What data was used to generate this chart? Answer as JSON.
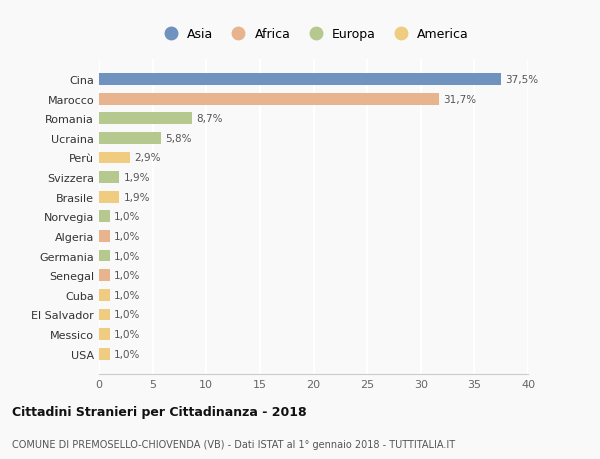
{
  "countries": [
    "Cina",
    "Marocco",
    "Romania",
    "Ucraina",
    "Perù",
    "Svizzera",
    "Brasile",
    "Norvegia",
    "Algeria",
    "Germania",
    "Senegal",
    "Cuba",
    "El Salvador",
    "Messico",
    "USA"
  ],
  "values": [
    37.5,
    31.7,
    8.7,
    5.8,
    2.9,
    1.9,
    1.9,
    1.0,
    1.0,
    1.0,
    1.0,
    1.0,
    1.0,
    1.0,
    1.0
  ],
  "labels": [
    "37,5%",
    "31,7%",
    "8,7%",
    "5,8%",
    "2,9%",
    "1,9%",
    "1,9%",
    "1,0%",
    "1,0%",
    "1,0%",
    "1,0%",
    "1,0%",
    "1,0%",
    "1,0%",
    "1,0%"
  ],
  "continents": [
    "Asia",
    "Africa",
    "Europa",
    "Europa",
    "America",
    "Europa",
    "America",
    "Europa",
    "Africa",
    "Europa",
    "Africa",
    "America",
    "America",
    "America",
    "America"
  ],
  "continent_colors": {
    "Asia": "#7092be",
    "Africa": "#e8b48e",
    "Europa": "#b5c98e",
    "America": "#f0cc80"
  },
  "legend_order": [
    "Asia",
    "Africa",
    "Europa",
    "America"
  ],
  "xlim": [
    0,
    40
  ],
  "xticks": [
    0,
    5,
    10,
    15,
    20,
    25,
    30,
    35,
    40
  ],
  "title": "Cittadini Stranieri per Cittadinanza - 2018",
  "subtitle": "COMUNE DI PREMOSELLO-CHIOVENDA (VB) - Dati ISTAT al 1° gennaio 2018 - TUTTITALIA.IT",
  "background_color": "#f9f9f9",
  "bar_height": 0.6
}
